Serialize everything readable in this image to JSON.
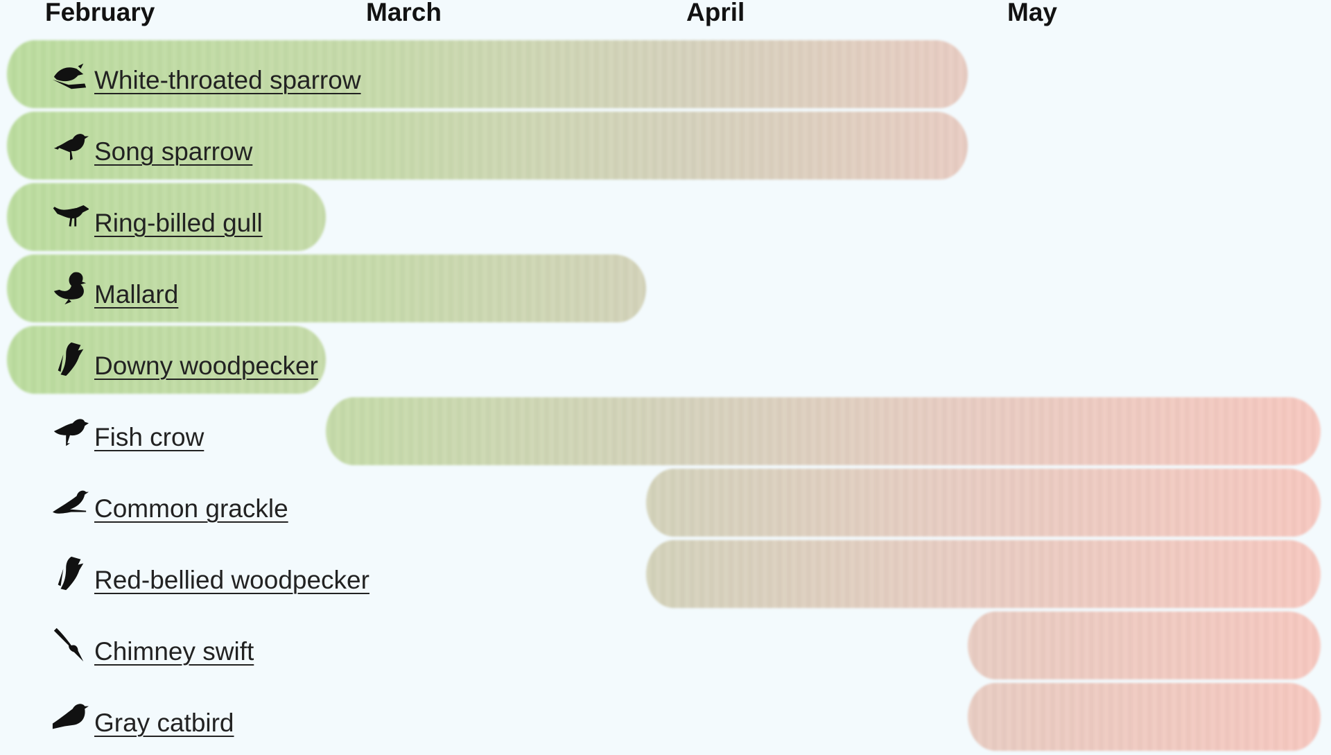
{
  "chart_data": {
    "type": "bar",
    "title": "",
    "xlabel": "",
    "ylabel": "",
    "x_axis_ticks": [
      "February",
      "March",
      "April",
      "May"
    ],
    "xlim": [
      "February",
      "end of May"
    ],
    "colors": {
      "start": "#bcdd9f",
      "end": "#f7c8c0",
      "background": "#f3fafd"
    },
    "series": [
      {
        "name": "White-throated sparrow",
        "icon": "sparrow-icon",
        "start": "February",
        "end": "May"
      },
      {
        "name": "Song sparrow",
        "icon": "songbird-icon",
        "start": "February",
        "end": "May"
      },
      {
        "name": "Ring-billed gull",
        "icon": "gull-icon",
        "start": "February",
        "end": "March"
      },
      {
        "name": "Mallard",
        "icon": "duck-icon",
        "start": "February",
        "end": "April"
      },
      {
        "name": "Downy woodpecker",
        "icon": "woodpecker-icon",
        "start": "February",
        "end": "March"
      },
      {
        "name": "Fish crow",
        "icon": "crow-icon",
        "start": "March",
        "end": "end of May"
      },
      {
        "name": "Common grackle",
        "icon": "grackle-icon",
        "start": "April",
        "end": "end of May"
      },
      {
        "name": "Red-bellied woodpecker",
        "icon": "woodpecker-icon",
        "start": "April",
        "end": "end of May"
      },
      {
        "name": "Chimney swift",
        "icon": "swift-icon",
        "start": "May",
        "end": "end of May"
      },
      {
        "name": "Gray catbird",
        "icon": "catbird-icon",
        "start": "May",
        "end": "end of May"
      }
    ]
  }
}
